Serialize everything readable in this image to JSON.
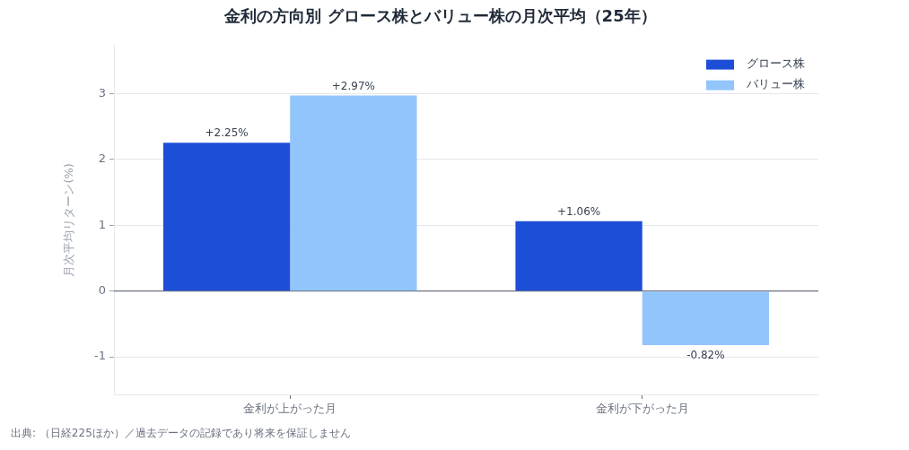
{
  "chart_data": {
    "type": "bar",
    "title": "金利の方向別 グロース株とバリュー株の月次平均（25年）",
    "ylabel": "月次平均リターン(%)",
    "categories": [
      "金利が上がった月",
      "金利が下がった月"
    ],
    "series": [
      {
        "name": "グロース株",
        "color": "#1d4ed8",
        "values": [
          2.25,
          1.06
        ],
        "value_labels": [
          "+2.25%",
          "+1.06%"
        ]
      },
      {
        "name": "バリュー株",
        "color": "#93c5fd",
        "values": [
          2.97,
          -0.82
        ],
        "value_labels": [
          "+2.97%",
          "-0.82%"
        ]
      }
    ],
    "ylim": [
      -1.57,
      3.73
    ],
    "yticks": [
      -1,
      0,
      1,
      2,
      3
    ],
    "grid": "y",
    "legend": "top right",
    "annotations": [
      "出典: （日経225ほか）／過去データの記録であり将来を保証しません"
    ]
  }
}
